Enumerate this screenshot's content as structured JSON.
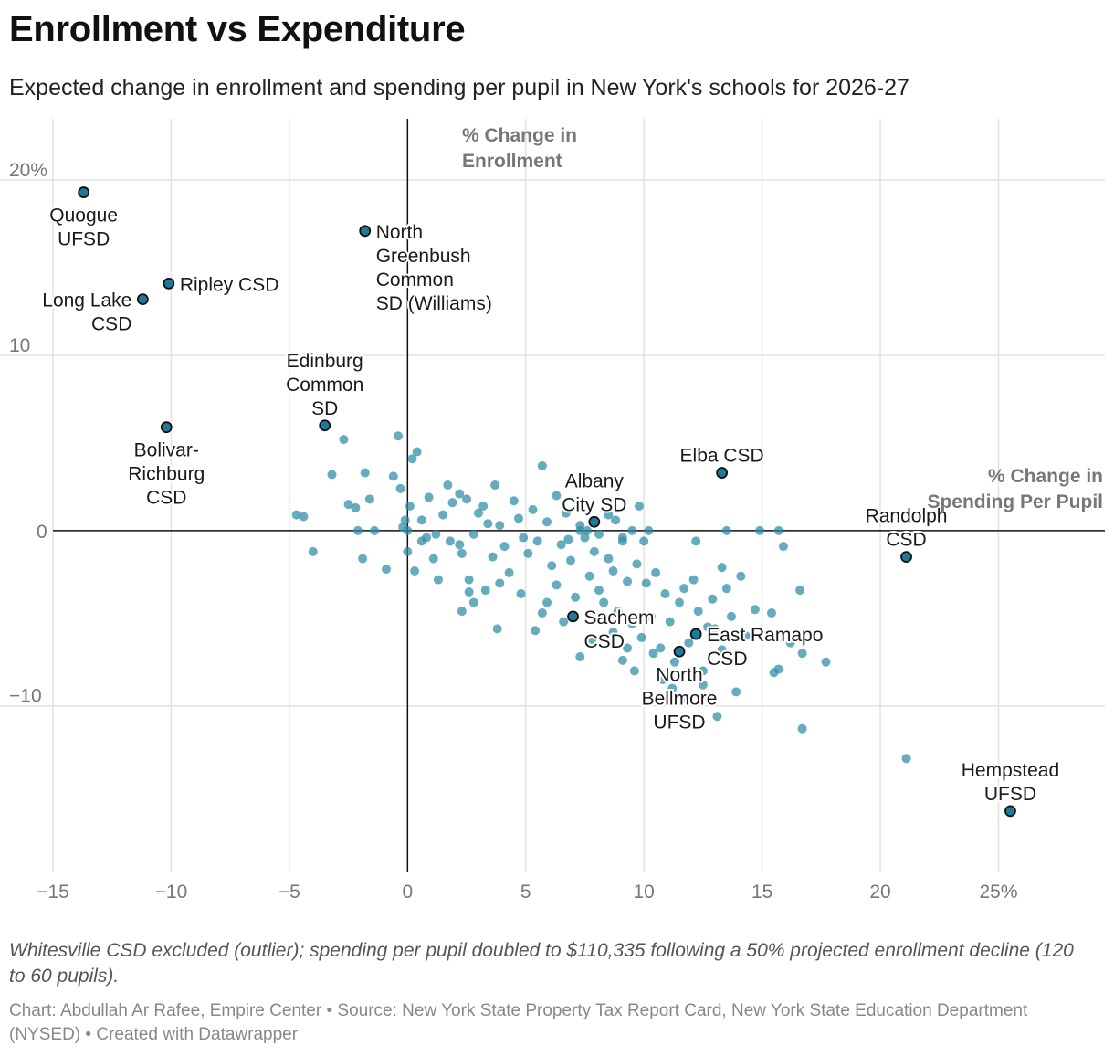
{
  "header": {
    "title": "Enrollment vs Expenditure",
    "subtitle": "Expected change in enrollment and spending per pupil in New York's schools for 2026-27"
  },
  "footer": {
    "note": "Whitesville CSD excluded (outlier); spending per pupil doubled to $110,335 following a 50% projected enrollment decline (120 to 60 pupils).",
    "credit_chart": "Chart: Abdullah Ar Rafee, Empire Center",
    "credit_source": "Source: New York State Property Tax Report Card, New York State Education Department (NYSED)",
    "credit_tool": "Created with Datawrapper",
    "separator": "•"
  },
  "colors": {
    "dot": "#2d8aa6",
    "highlight": "#1e7a9b",
    "axis": "#111111",
    "grid": "#e2e2e2",
    "tick": "#777777",
    "axis_title": "#777777"
  },
  "chart_data": {
    "type": "scatter",
    "xlabel": "% Change in Spending Per Pupil",
    "ylabel": "% Change in Enrollment",
    "xlim": [
      -15,
      29.5
    ],
    "ylim": [
      -19.5,
      23.5
    ],
    "grid": true,
    "x_ticks": [
      {
        "value": -15,
        "label": "−15"
      },
      {
        "value": -10,
        "label": "−10"
      },
      {
        "value": -5,
        "label": "−5"
      },
      {
        "value": 0,
        "label": "0"
      },
      {
        "value": 5,
        "label": "5"
      },
      {
        "value": 10,
        "label": "10"
      },
      {
        "value": 15,
        "label": "15"
      },
      {
        "value": 20,
        "label": "20"
      },
      {
        "value": 25,
        "label": "25%"
      }
    ],
    "y_ticks": [
      {
        "value": 20,
        "label": "20%"
      },
      {
        "value": 10,
        "label": "10"
      },
      {
        "value": 0,
        "label": "0"
      },
      {
        "value": -10,
        "label": "−10"
      }
    ],
    "highlighted": [
      {
        "name": "Quogue UFSD",
        "lines": [
          "Quogue",
          "UFSD"
        ],
        "x": -13.7,
        "y": 19.3,
        "label_pos": "below"
      },
      {
        "name": "Ripley CSD",
        "lines": [
          "Ripley CSD"
        ],
        "x": -10.1,
        "y": 14.1,
        "label_pos": "right"
      },
      {
        "name": "Long Lake CSD",
        "lines": [
          "Long Lake",
          "CSD"
        ],
        "x": -11.2,
        "y": 13.2,
        "label_pos": "left"
      },
      {
        "name": "North Greenbush Common SD (Williams)",
        "lines": [
          "North",
          "Greenbush",
          "Common",
          "SD (Williams)"
        ],
        "x": -1.8,
        "y": 17.1,
        "label_pos": "right"
      },
      {
        "name": "Edinburg Common SD",
        "lines": [
          "Edinburg",
          "Common",
          "SD"
        ],
        "x": -3.5,
        "y": 6.0,
        "label_pos": "above"
      },
      {
        "name": "Bolivar-Richburg CSD",
        "lines": [
          "Bolivar-",
          "Richburg",
          "CSD"
        ],
        "x": -10.2,
        "y": 5.9,
        "label_pos": "below"
      },
      {
        "name": "Elba CSD",
        "lines": [
          "Elba CSD"
        ],
        "x": 13.3,
        "y": 3.3,
        "label_pos": "above"
      },
      {
        "name": "Albany City SD",
        "lines": [
          "Albany",
          "City SD"
        ],
        "x": 7.9,
        "y": 0.5,
        "label_pos": "above"
      },
      {
        "name": "Randolph CSD",
        "lines": [
          "Randolph",
          "CSD"
        ],
        "x": 21.1,
        "y": -1.5,
        "label_pos": "above"
      },
      {
        "name": "Sachem CSD",
        "lines": [
          "Sachem",
          "CSD"
        ],
        "x": 7.0,
        "y": -4.9,
        "label_pos": "right"
      },
      {
        "name": "East Ramapo CSD",
        "lines": [
          "East Ramapo",
          "CSD"
        ],
        "x": 12.2,
        "y": -5.9,
        "label_pos": "right"
      },
      {
        "name": "North Bellmore UFSD",
        "lines": [
          "North",
          "Bellmore",
          "UFSD"
        ],
        "x": 11.5,
        "y": -6.9,
        "label_pos": "below"
      },
      {
        "name": "Hempstead UFSD",
        "lines": [
          "Hempstead",
          "UFSD"
        ],
        "x": 25.5,
        "y": -16.0,
        "label_pos": "above"
      }
    ],
    "points": [
      [
        -4.7,
        0.9
      ],
      [
        -4.4,
        0.8
      ],
      [
        -4.0,
        -1.2
      ],
      [
        -3.2,
        3.2
      ],
      [
        -2.7,
        5.2
      ],
      [
        -2.5,
        1.5
      ],
      [
        -2.2,
        1.3
      ],
      [
        -1.8,
        3.3
      ],
      [
        -1.6,
        1.8
      ],
      [
        -1.4,
        0.0
      ],
      [
        -1.9,
        -1.6
      ],
      [
        -2.1,
        0.0
      ],
      [
        -0.9,
        -2.2
      ],
      [
        -0.6,
        3.1
      ],
      [
        -0.4,
        5.4
      ],
      [
        -0.3,
        2.4
      ],
      [
        0.2,
        4.1
      ],
      [
        0.4,
        4.5
      ],
      [
        0.1,
        1.4
      ],
      [
        0.0,
        -1.2
      ],
      [
        0.3,
        -2.3
      ],
      [
        -0.2,
        0.2
      ],
      [
        0.6,
        0.6
      ],
      [
        0.8,
        -0.4
      ],
      [
        1.1,
        -1.6
      ],
      [
        1.3,
        -2.8
      ],
      [
        1.5,
        0.9
      ],
      [
        1.7,
        2.6
      ],
      [
        1.9,
        1.6
      ],
      [
        2.2,
        -0.8
      ],
      [
        2.3,
        -1.3
      ],
      [
        2.5,
        1.8
      ],
      [
        2.2,
        2.1
      ],
      [
        2.6,
        -2.8
      ],
      [
        2.6,
        -3.5
      ],
      [
        2.8,
        -0.2
      ],
      [
        3.0,
        1.0
      ],
      [
        3.2,
        1.4
      ],
      [
        3.4,
        0.4
      ],
      [
        3.6,
        -1.5
      ],
      [
        3.7,
        2.6
      ],
      [
        3.9,
        0.3
      ],
      [
        4.1,
        -0.9
      ],
      [
        4.3,
        -2.4
      ],
      [
        4.5,
        1.7
      ],
      [
        4.7,
        0.7
      ],
      [
        4.9,
        -0.4
      ],
      [
        5.1,
        -1.3
      ],
      [
        5.3,
        1.2
      ],
      [
        5.5,
        -0.6
      ],
      [
        5.7,
        3.7
      ],
      [
        5.9,
        0.5
      ],
      [
        6.1,
        -2.0
      ],
      [
        6.3,
        -3.1
      ],
      [
        6.5,
        -0.8
      ],
      [
        6.7,
        1.0
      ],
      [
        6.9,
        -1.7
      ],
      [
        7.1,
        -3.8
      ],
      [
        7.3,
        0.0
      ],
      [
        7.5,
        -0.4
      ],
      [
        7.7,
        -2.6
      ],
      [
        7.9,
        -1.2
      ],
      [
        8.1,
        -3.4
      ],
      [
        8.3,
        -4.1
      ],
      [
        8.5,
        -1.6
      ],
      [
        8.7,
        -2.3
      ],
      [
        8.9,
        -4.6
      ],
      [
        9.1,
        -0.6
      ],
      [
        9.3,
        -2.9
      ],
      [
        9.5,
        -5.3
      ],
      [
        9.7,
        -1.9
      ],
      [
        9.9,
        -6.1
      ],
      [
        10.1,
        -3.0
      ],
      [
        10.3,
        -4.9
      ],
      [
        10.5,
        -2.4
      ],
      [
        10.7,
        -6.7
      ],
      [
        10.9,
        -3.6
      ],
      [
        11.1,
        -5.2
      ],
      [
        11.3,
        -7.5
      ],
      [
        11.5,
        -4.1
      ],
      [
        11.7,
        -3.3
      ],
      [
        11.9,
        -6.4
      ],
      [
        12.1,
        -2.8
      ],
      [
        12.3,
        -4.6
      ],
      [
        12.5,
        -8.8
      ],
      [
        12.7,
        -5.5
      ],
      [
        12.9,
        -3.9
      ],
      [
        13.1,
        -10.6
      ],
      [
        13.3,
        -6.8
      ],
      [
        13.5,
        -3.3
      ],
      [
        13.7,
        -4.9
      ],
      [
        13.9,
        -9.2
      ],
      [
        14.1,
        -2.6
      ],
      [
        14.3,
        -6.0
      ],
      [
        14.7,
        -4.5
      ],
      [
        15.4,
        -4.7
      ],
      [
        15.7,
        -7.9
      ],
      [
        15.5,
        -8.1
      ],
      [
        16.2,
        -6.4
      ],
      [
        16.6,
        -3.4
      ],
      [
        16.7,
        -7.0
      ],
      [
        16.7,
        -11.3
      ],
      [
        17.7,
        -7.5
      ],
      [
        21.1,
        -13.0
      ],
      [
        15.7,
        0.0
      ],
      [
        15.9,
        -0.9
      ],
      [
        14.9,
        0.0
      ],
      [
        13.5,
        0.0
      ],
      [
        13.3,
        -2.1
      ],
      [
        12.2,
        -0.6
      ],
      [
        10.2,
        0.0
      ],
      [
        9.8,
        1.4
      ],
      [
        10.0,
        -0.6
      ],
      [
        9.5,
        0.0
      ],
      [
        9.1,
        -0.4
      ],
      [
        8.8,
        0.6
      ],
      [
        8.5,
        0.9
      ],
      [
        8.1,
        -0.2
      ],
      [
        7.6,
        0.0
      ],
      [
        7.3,
        0.3
      ],
      [
        6.8,
        -0.5
      ],
      [
        6.3,
        2.0
      ],
      [
        5.7,
        -4.7
      ],
      [
        5.4,
        -5.7
      ],
      [
        4.8,
        -3.6
      ],
      [
        3.9,
        -3.0
      ],
      [
        3.3,
        -3.4
      ],
      [
        2.8,
        -4.1
      ],
      [
        2.3,
        -4.6
      ],
      [
        1.8,
        -0.6
      ],
      [
        1.2,
        -0.2
      ],
      [
        0.9,
        1.9
      ],
      [
        0.6,
        -0.6
      ],
      [
        -0.1,
        0.6
      ],
      [
        0.0,
        0.0
      ],
      [
        3.8,
        -5.6
      ],
      [
        7.3,
        -7.2
      ],
      [
        9.1,
        -7.4
      ],
      [
        9.6,
        -8.0
      ],
      [
        10.4,
        -7.0
      ],
      [
        11.2,
        -9.0
      ],
      [
        12.5,
        -8.0
      ],
      [
        13.0,
        -5.6
      ],
      [
        11.8,
        -9.6
      ],
      [
        10.8,
        -8.5
      ],
      [
        9.3,
        -6.7
      ],
      [
        8.7,
        -5.8
      ],
      [
        7.8,
        -6.2
      ],
      [
        6.6,
        -5.2
      ],
      [
        5.9,
        -4.1
      ]
    ]
  }
}
